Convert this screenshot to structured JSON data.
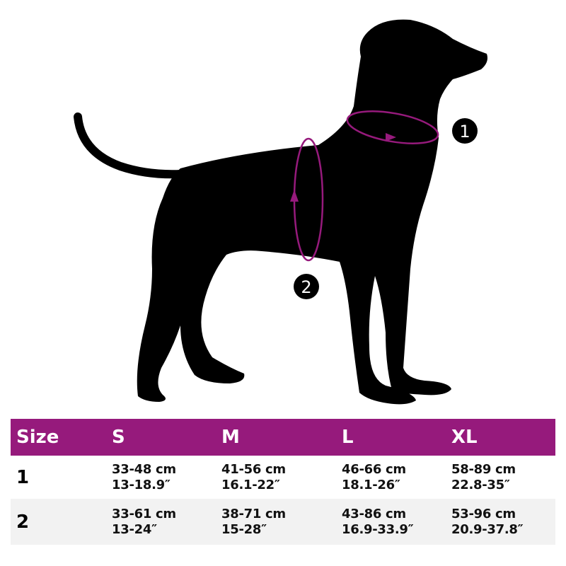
{
  "colors": {
    "accent": "#961a7c",
    "silhouette": "#000000",
    "row_alt": "#f2f2f2"
  },
  "markers": [
    {
      "label": "1"
    },
    {
      "label": "2"
    }
  ],
  "table": {
    "header": [
      "Size",
      "S",
      "M",
      "L",
      "XL"
    ],
    "rows": [
      {
        "label": "1",
        "cells": [
          {
            "cm": "33-48 cm",
            "in": "13-18.9″"
          },
          {
            "cm": "41-56 cm",
            "in": "16.1-22″"
          },
          {
            "cm": "46-66 cm",
            "in": "18.1-26″"
          },
          {
            "cm": "58-89 cm",
            "in": "22.8-35″"
          }
        ]
      },
      {
        "label": "2",
        "cells": [
          {
            "cm": "33-61 cm",
            "in": "13-24″"
          },
          {
            "cm": "38-71 cm",
            "in": "15-28″"
          },
          {
            "cm": "43-86 cm",
            "in": "16.9-33.9″"
          },
          {
            "cm": "53-96 cm",
            "in": "20.9-37.8″"
          }
        ]
      }
    ]
  }
}
